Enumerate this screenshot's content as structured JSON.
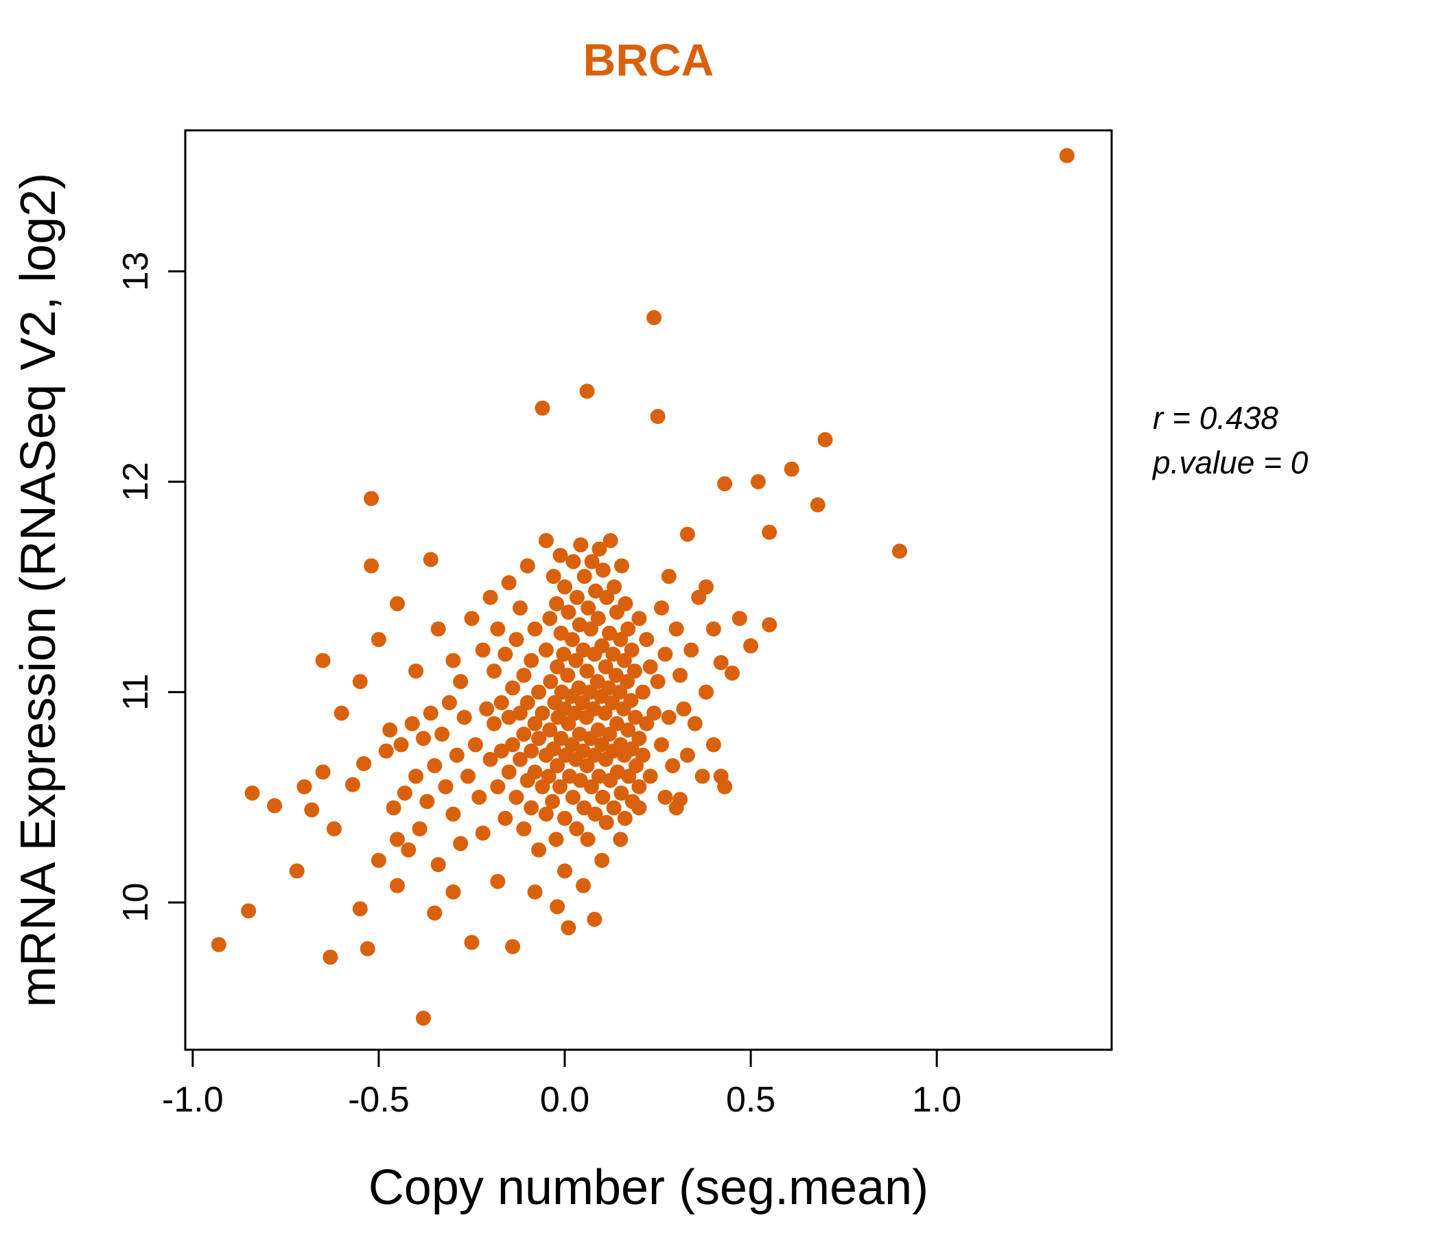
{
  "page": {
    "background_color": "#ffffff"
  },
  "chart_data": {
    "type": "scatter",
    "title": "BRCA",
    "title_color": "#D9610B",
    "point_color": "#D9610B",
    "xlabel": "Copy number (seg.mean)",
    "ylabel": "mRNA Expression (RNASeq V2, log2)",
    "xlim": [
      -1.02,
      1.47
    ],
    "ylim": [
      9.3,
      13.67
    ],
    "grid": false,
    "x_ticks": [
      {
        "value": -1.0,
        "label": "-1.0"
      },
      {
        "value": -0.5,
        "label": "-0.5"
      },
      {
        "value": 0.0,
        "label": "0.0"
      },
      {
        "value": 0.5,
        "label": "0.5"
      },
      {
        "value": 1.0,
        "label": "1.0"
      }
    ],
    "y_ticks": [
      {
        "value": 10,
        "label": "10"
      },
      {
        "value": 11,
        "label": "11"
      },
      {
        "value": 12,
        "label": "12"
      },
      {
        "value": 13,
        "label": "13"
      }
    ],
    "annotation": {
      "line1": "r = 0.438",
      "line2": "p.value = 0"
    },
    "points": [
      [
        -0.93,
        9.8
      ],
      [
        -0.85,
        9.96
      ],
      [
        -0.84,
        10.52
      ],
      [
        -0.78,
        10.46
      ],
      [
        -0.72,
        10.15
      ],
      [
        -0.7,
        10.55
      ],
      [
        -0.68,
        10.44
      ],
      [
        -0.65,
        10.62
      ],
      [
        -0.65,
        11.15
      ],
      [
        -0.63,
        9.74
      ],
      [
        -0.62,
        10.35
      ],
      [
        -0.6,
        10.9
      ],
      [
        -0.57,
        10.56
      ],
      [
        -0.55,
        9.97
      ],
      [
        -0.55,
        11.05
      ],
      [
        -0.54,
        10.66
      ],
      [
        -0.53,
        9.78
      ],
      [
        -0.52,
        11.92
      ],
      [
        -0.52,
        11.6
      ],
      [
        -0.5,
        10.2
      ],
      [
        -0.5,
        11.25
      ],
      [
        -0.48,
        10.72
      ],
      [
        -0.47,
        10.82
      ],
      [
        -0.46,
        10.45
      ],
      [
        -0.45,
        11.42
      ],
      [
        -0.45,
        10.3
      ],
      [
        -0.45,
        10.08
      ],
      [
        -0.44,
        10.75
      ],
      [
        -0.43,
        10.52
      ],
      [
        -0.42,
        10.25
      ],
      [
        -0.41,
        10.85
      ],
      [
        -0.4,
        10.6
      ],
      [
        -0.4,
        11.1
      ],
      [
        -0.39,
        10.35
      ],
      [
        -0.38,
        9.45
      ],
      [
        -0.38,
        10.78
      ],
      [
        -0.37,
        10.48
      ],
      [
        -0.36,
        11.63
      ],
      [
        -0.36,
        10.9
      ],
      [
        -0.35,
        10.65
      ],
      [
        -0.35,
        9.95
      ],
      [
        -0.34,
        10.18
      ],
      [
        -0.34,
        11.3
      ],
      [
        -0.33,
        10.8
      ],
      [
        -0.32,
        10.55
      ],
      [
        -0.31,
        10.95
      ],
      [
        -0.3,
        10.42
      ],
      [
        -0.3,
        11.15
      ],
      [
        -0.3,
        10.05
      ],
      [
        -0.29,
        10.7
      ],
      [
        -0.28,
        10.28
      ],
      [
        -0.28,
        11.05
      ],
      [
        -0.27,
        10.88
      ],
      [
        -0.26,
        10.6
      ],
      [
        -0.25,
        9.81
      ],
      [
        -0.25,
        11.35
      ],
      [
        -0.24,
        10.75
      ],
      [
        -0.23,
        10.5
      ],
      [
        -0.22,
        11.2
      ],
      [
        -0.22,
        10.33
      ],
      [
        -0.21,
        10.92
      ],
      [
        -0.2,
        10.68
      ],
      [
        -0.2,
        11.45
      ],
      [
        -0.19,
        10.85
      ],
      [
        -0.19,
        11.1
      ],
      [
        -0.18,
        10.55
      ],
      [
        -0.18,
        11.3
      ],
      [
        -0.18,
        10.1
      ],
      [
        -0.17,
        10.72
      ],
      [
        -0.17,
        10.95
      ],
      [
        -0.16,
        10.4
      ],
      [
        -0.16,
        11.18
      ],
      [
        -0.15,
        10.62
      ],
      [
        -0.15,
        10.88
      ],
      [
        -0.15,
        11.52
      ],
      [
        -0.14,
        9.79
      ],
      [
        -0.14,
        10.75
      ],
      [
        -0.14,
        11.02
      ],
      [
        -0.13,
        10.5
      ],
      [
        -0.13,
        11.25
      ],
      [
        -0.12,
        10.68
      ],
      [
        -0.12,
        10.9
      ],
      [
        -0.12,
        11.4
      ],
      [
        -0.11,
        10.35
      ],
      [
        -0.11,
        10.8
      ],
      [
        -0.11,
        11.08
      ],
      [
        -0.1,
        10.58
      ],
      [
        -0.1,
        10.95
      ],
      [
        -0.1,
        11.6
      ],
      [
        -0.09,
        10.45
      ],
      [
        -0.09,
        10.72
      ],
      [
        -0.09,
        11.15
      ],
      [
        -0.08,
        10.62
      ],
      [
        -0.08,
        10.85
      ],
      [
        -0.08,
        11.3
      ],
      [
        -0.08,
        10.05
      ],
      [
        -0.07,
        10.25
      ],
      [
        -0.07,
        10.78
      ],
      [
        -0.07,
        11.0
      ],
      [
        -0.06,
        10.55
      ],
      [
        -0.06,
        10.9
      ],
      [
        -0.06,
        12.35
      ],
      [
        -0.05,
        10.42
      ],
      [
        -0.05,
        10.7
      ],
      [
        -0.05,
        11.2
      ],
      [
        -0.05,
        11.72
      ],
      [
        -0.043,
        10.6
      ],
      [
        -0.04,
        10.82
      ],
      [
        -0.038,
        11.05
      ],
      [
        -0.04,
        11.35
      ],
      [
        -0.033,
        10.48
      ],
      [
        -0.03,
        10.73
      ],
      [
        -0.027,
        10.95
      ],
      [
        -0.03,
        11.55
      ],
      [
        -0.023,
        10.3
      ],
      [
        -0.02,
        10.65
      ],
      [
        -0.02,
        9.98
      ],
      [
        -0.018,
        10.88
      ],
      [
        -0.02,
        11.12
      ],
      [
        -0.022,
        11.42
      ],
      [
        -0.013,
        10.55
      ],
      [
        -0.01,
        10.78
      ],
      [
        -0.008,
        11.0
      ],
      [
        -0.01,
        11.28
      ],
      [
        -0.012,
        11.65
      ],
      [
        0.0,
        10.4
      ],
      [
        0.003,
        10.7
      ],
      [
        0.0,
        10.92
      ],
      [
        -0.003,
        11.18
      ],
      [
        0.0,
        11.5
      ],
      [
        0.0,
        10.15
      ],
      [
        0.01,
        9.88
      ],
      [
        0.013,
        10.6
      ],
      [
        0.01,
        10.85
      ],
      [
        0.008,
        11.08
      ],
      [
        0.01,
        11.38
      ],
      [
        0.022,
        10.5
      ],
      [
        0.02,
        10.75
      ],
      [
        0.018,
        10.98
      ],
      [
        0.02,
        11.25
      ],
      [
        0.023,
        11.62
      ],
      [
        0.032,
        10.35
      ],
      [
        0.03,
        10.68
      ],
      [
        0.028,
        10.9
      ],
      [
        0.03,
        11.15
      ],
      [
        0.033,
        11.45
      ],
      [
        0.042,
        10.58
      ],
      [
        0.04,
        10.8
      ],
      [
        0.038,
        11.02
      ],
      [
        0.04,
        11.32
      ],
      [
        0.043,
        11.7
      ],
      [
        0.052,
        10.45
      ],
      [
        0.05,
        10.72
      ],
      [
        0.048,
        10.95
      ],
      [
        0.05,
        11.2
      ],
      [
        0.053,
        11.55
      ],
      [
        0.05,
        10.08
      ],
      [
        0.062,
        10.3
      ],
      [
        0.06,
        10.65
      ],
      [
        0.058,
        10.88
      ],
      [
        0.06,
        11.1
      ],
      [
        0.063,
        11.4
      ],
      [
        0.06,
        12.43
      ],
      [
        0.072,
        10.55
      ],
      [
        0.07,
        10.78
      ],
      [
        0.068,
        11.0
      ],
      [
        0.07,
        11.3
      ],
      [
        0.073,
        11.62
      ],
      [
        0.082,
        10.42
      ],
      [
        0.08,
        10.7
      ],
      [
        0.078,
        10.92
      ],
      [
        0.08,
        11.18
      ],
      [
        0.083,
        11.48
      ],
      [
        0.08,
        9.92
      ],
      [
        0.092,
        10.6
      ],
      [
        0.09,
        10.82
      ],
      [
        0.088,
        11.05
      ],
      [
        0.09,
        11.35
      ],
      [
        0.093,
        11.68
      ],
      [
        0.102,
        10.5
      ],
      [
        0.1,
        10.75
      ],
      [
        0.098,
        10.98
      ],
      [
        0.1,
        11.22
      ],
      [
        0.103,
        11.58
      ],
      [
        0.1,
        10.2
      ],
      [
        0.112,
        10.38
      ],
      [
        0.11,
        10.68
      ],
      [
        0.108,
        10.9
      ],
      [
        0.11,
        11.12
      ],
      [
        0.113,
        11.45
      ],
      [
        0.122,
        10.58
      ],
      [
        0.12,
        10.8
      ],
      [
        0.118,
        11.02
      ],
      [
        0.12,
        11.28
      ],
      [
        0.123,
        11.72
      ],
      [
        0.132,
        10.45
      ],
      [
        0.13,
        10.72
      ],
      [
        0.128,
        10.95
      ],
      [
        0.13,
        11.18
      ],
      [
        0.133,
        11.5
      ],
      [
        0.142,
        10.62
      ],
      [
        0.14,
        10.85
      ],
      [
        0.138,
        11.08
      ],
      [
        0.14,
        11.38
      ],
      [
        0.152,
        10.52
      ],
      [
        0.15,
        10.75
      ],
      [
        0.148,
        11.0
      ],
      [
        0.15,
        11.25
      ],
      [
        0.153,
        11.6
      ],
      [
        0.15,
        10.3
      ],
      [
        0.162,
        10.4
      ],
      [
        0.16,
        10.7
      ],
      [
        0.158,
        10.92
      ],
      [
        0.16,
        11.15
      ],
      [
        0.163,
        11.42
      ],
      [
        0.172,
        10.6
      ],
      [
        0.17,
        10.82
      ],
      [
        0.168,
        11.05
      ],
      [
        0.17,
        11.3
      ],
      [
        0.182,
        10.48
      ],
      [
        0.18,
        10.73
      ],
      [
        0.178,
        10.96
      ],
      [
        0.18,
        11.2
      ],
      [
        0.192,
        10.65
      ],
      [
        0.19,
        10.88
      ],
      [
        0.188,
        11.1
      ],
      [
        0.2,
        10.55
      ],
      [
        0.2,
        10.78
      ],
      [
        0.2,
        11.35
      ],
      [
        0.2,
        10.45
      ],
      [
        0.21,
        10.7
      ],
      [
        0.21,
        11.0
      ],
      [
        0.22,
        10.85
      ],
      [
        0.22,
        11.25
      ],
      [
        0.23,
        10.6
      ],
      [
        0.23,
        11.12
      ],
      [
        0.24,
        12.78
      ],
      [
        0.24,
        10.9
      ],
      [
        0.25,
        12.31
      ],
      [
        0.25,
        11.05
      ],
      [
        0.26,
        10.75
      ],
      [
        0.26,
        11.4
      ],
      [
        0.27,
        10.5
      ],
      [
        0.27,
        11.18
      ],
      [
        0.28,
        10.88
      ],
      [
        0.28,
        11.55
      ],
      [
        0.29,
        10.65
      ],
      [
        0.3,
        11.3
      ],
      [
        0.3,
        10.45
      ],
      [
        0.31,
        10.49
      ],
      [
        0.31,
        11.08
      ],
      [
        0.32,
        10.92
      ],
      [
        0.33,
        11.75
      ],
      [
        0.33,
        10.7
      ],
      [
        0.34,
        11.2
      ],
      [
        0.35,
        10.85
      ],
      [
        0.36,
        11.45
      ],
      [
        0.37,
        10.6
      ],
      [
        0.38,
        11.5
      ],
      [
        0.38,
        11.0
      ],
      [
        0.4,
        11.3
      ],
      [
        0.4,
        10.75
      ],
      [
        0.42,
        10.6
      ],
      [
        0.42,
        11.14
      ],
      [
        0.43,
        11.99
      ],
      [
        0.43,
        10.55
      ],
      [
        0.45,
        11.09
      ],
      [
        0.47,
        11.35
      ],
      [
        0.5,
        11.22
      ],
      [
        0.52,
        12.0
      ],
      [
        0.55,
        11.32
      ],
      [
        0.55,
        11.76
      ],
      [
        0.61,
        12.06
      ],
      [
        0.68,
        11.89
      ],
      [
        0.7,
        12.2
      ],
      [
        0.9,
        11.67
      ],
      [
        1.35,
        13.55
      ]
    ]
  }
}
